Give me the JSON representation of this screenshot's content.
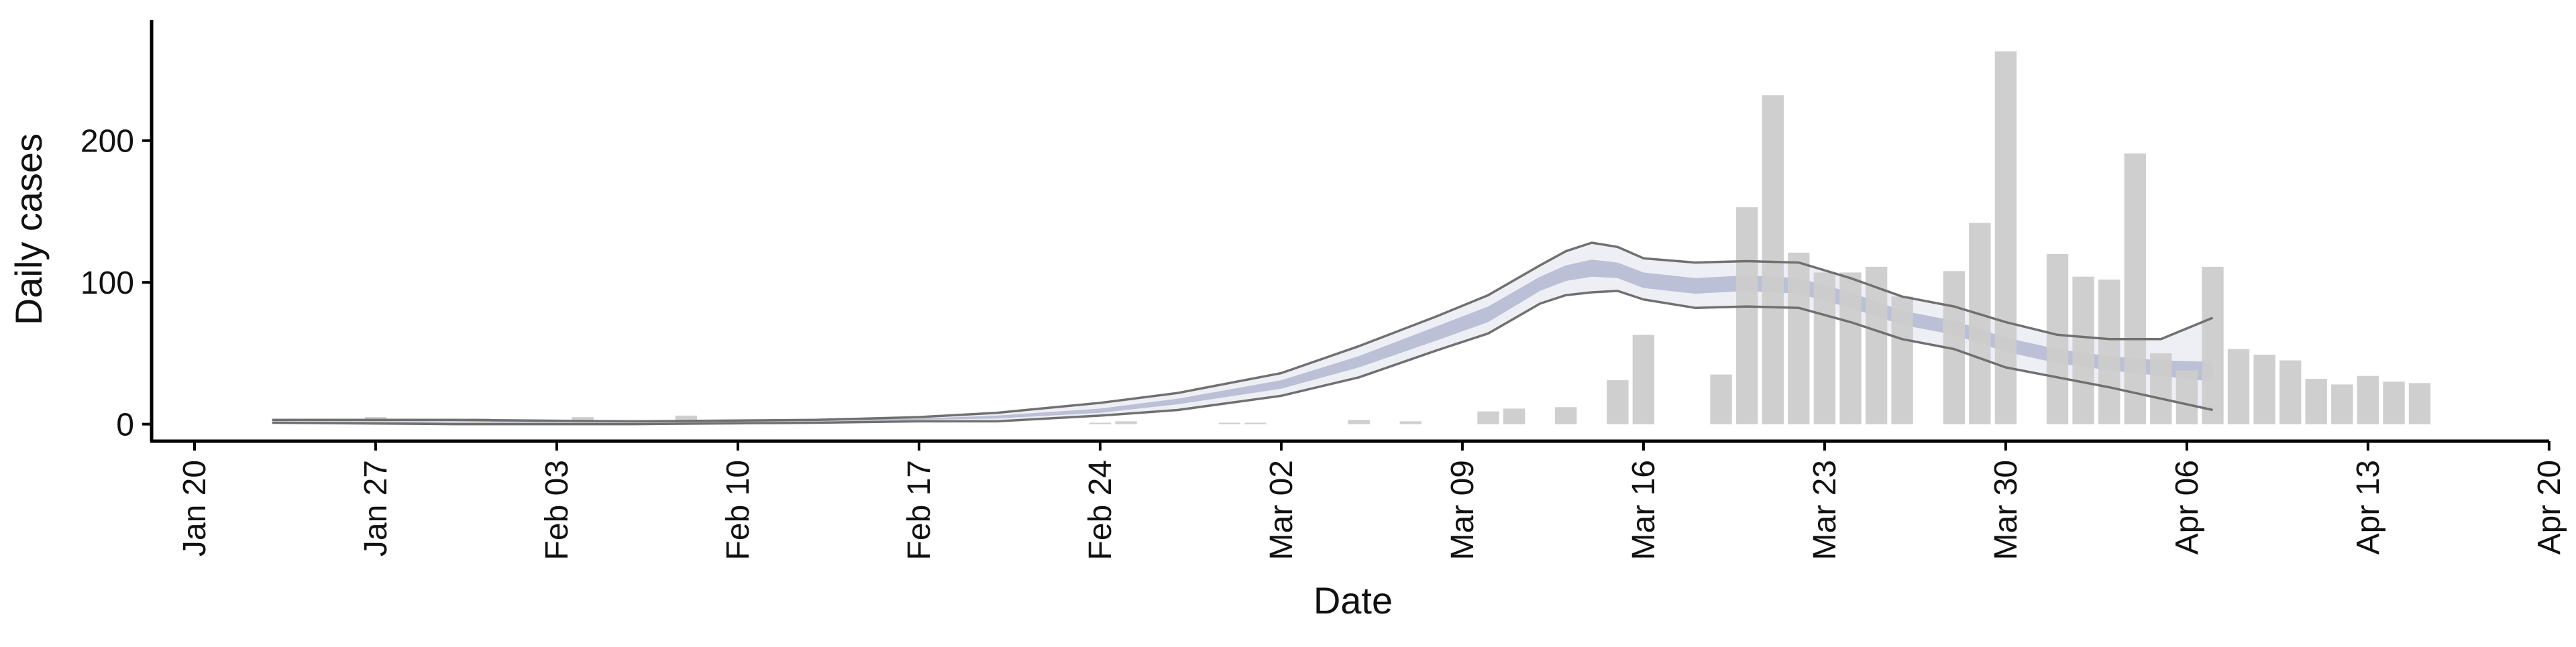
{
  "chart_data": {
    "type": "bar",
    "title": "",
    "xlabel": "Date",
    "ylabel": "Daily cases",
    "x_axis": {
      "start": "2020-01-20",
      "end": "2020-04-20",
      "ticks": [
        "Jan 20",
        "Jan 27",
        "Feb 03",
        "Feb 10",
        "Feb 17",
        "Feb 24",
        "Mar 02",
        "Mar 09",
        "Mar 16",
        "Mar 23",
        "Mar 30",
        "Apr 06",
        "Apr 13",
        "Apr 20"
      ]
    },
    "y_axis": {
      "ylim": [
        -12,
        285
      ],
      "ticks": [
        0,
        100,
        200
      ]
    },
    "grid": false,
    "legend": "none",
    "series": [
      {
        "kind": "bars",
        "color": "#cccccc",
        "points": [
          {
            "x": "2020-01-27",
            "y": 5
          },
          {
            "x": "2020-01-31",
            "y": 4
          },
          {
            "x": "2020-02-04",
            "y": 5
          },
          {
            "x": "2020-02-08",
            "y": 6
          },
          {
            "x": "2020-02-24",
            "y": 1
          },
          {
            "x": "2020-02-25",
            "y": 2
          },
          {
            "x": "2020-02-29",
            "y": 1
          },
          {
            "x": "2020-03-01",
            "y": 1
          },
          {
            "x": "2020-03-05",
            "y": 3
          },
          {
            "x": "2020-03-07",
            "y": 2
          },
          {
            "x": "2020-03-10",
            "y": 9
          },
          {
            "x": "2020-03-11",
            "y": 11
          },
          {
            "x": "2020-03-13",
            "y": 12
          },
          {
            "x": "2020-03-15",
            "y": 31
          },
          {
            "x": "2020-03-16",
            "y": 63
          },
          {
            "x": "2020-03-19",
            "y": 35
          },
          {
            "x": "2020-03-20",
            "y": 153
          },
          {
            "x": "2020-03-21",
            "y": 232
          },
          {
            "x": "2020-03-22",
            "y": 121
          },
          {
            "x": "2020-03-23",
            "y": 107
          },
          {
            "x": "2020-03-24",
            "y": 107
          },
          {
            "x": "2020-03-25",
            "y": 111
          },
          {
            "x": "2020-03-26",
            "y": 90
          },
          {
            "x": "2020-03-28",
            "y": 108
          },
          {
            "x": "2020-03-29",
            "y": 142
          },
          {
            "x": "2020-03-30",
            "y": 263
          },
          {
            "x": "2020-04-01",
            "y": 120
          },
          {
            "x": "2020-04-02",
            "y": 104
          },
          {
            "x": "2020-04-03",
            "y": 102
          },
          {
            "x": "2020-04-04",
            "y": 191
          },
          {
            "x": "2020-04-05",
            "y": 50
          },
          {
            "x": "2020-04-06",
            "y": 38
          },
          {
            "x": "2020-04-07",
            "y": 111
          },
          {
            "x": "2020-04-08",
            "y": 53
          },
          {
            "x": "2020-04-09",
            "y": 49
          },
          {
            "x": "2020-04-10",
            "y": 45
          },
          {
            "x": "2020-04-11",
            "y": 32
          },
          {
            "x": "2020-04-12",
            "y": 28
          },
          {
            "x": "2020-04-13",
            "y": 34
          },
          {
            "x": "2020-04-14",
            "y": 30
          },
          {
            "x": "2020-04-15",
            "y": 29
          }
        ]
      },
      {
        "kind": "outer-band",
        "color": "#c9cde0",
        "points": [
          {
            "x": "2020-01-23",
            "lower": 1,
            "upper": 3
          },
          {
            "x": "2020-01-30",
            "lower": 0,
            "upper": 3
          },
          {
            "x": "2020-02-06",
            "lower": 0,
            "upper": 2
          },
          {
            "x": "2020-02-13",
            "lower": 1,
            "upper": 3
          },
          {
            "x": "2020-02-17",
            "lower": 2,
            "upper": 5
          },
          {
            "x": "2020-02-20",
            "lower": 2,
            "upper": 8
          },
          {
            "x": "2020-02-24",
            "lower": 6,
            "upper": 15
          },
          {
            "x": "2020-02-27",
            "lower": 10,
            "upper": 22
          },
          {
            "x": "2020-03-02",
            "lower": 20,
            "upper": 36
          },
          {
            "x": "2020-03-05",
            "lower": 33,
            "upper": 55
          },
          {
            "x": "2020-03-08",
            "lower": 52,
            "upper": 76
          },
          {
            "x": "2020-03-10",
            "lower": 64,
            "upper": 91
          },
          {
            "x": "2020-03-12",
            "lower": 85,
            "upper": 112
          },
          {
            "x": "2020-03-13",
            "lower": 91,
            "upper": 122
          },
          {
            "x": "2020-03-14",
            "lower": 93,
            "upper": 128
          },
          {
            "x": "2020-03-15",
            "lower": 94,
            "upper": 125
          },
          {
            "x": "2020-03-16",
            "lower": 88,
            "upper": 117
          },
          {
            "x": "2020-03-18",
            "lower": 82,
            "upper": 114
          },
          {
            "x": "2020-03-20",
            "lower": 83,
            "upper": 115
          },
          {
            "x": "2020-03-22",
            "lower": 82,
            "upper": 114
          },
          {
            "x": "2020-03-24",
            "lower": 72,
            "upper": 103
          },
          {
            "x": "2020-03-26",
            "lower": 60,
            "upper": 90
          },
          {
            "x": "2020-03-28",
            "lower": 53,
            "upper": 83
          },
          {
            "x": "2020-03-30",
            "lower": 40,
            "upper": 72
          },
          {
            "x": "2020-04-01",
            "lower": 33,
            "upper": 63
          },
          {
            "x": "2020-04-03",
            "lower": 26,
            "upper": 60
          },
          {
            "x": "2020-04-05",
            "lower": 18,
            "upper": 60
          },
          {
            "x": "2020-04-07",
            "lower": 10,
            "upper": 75
          }
        ]
      },
      {
        "kind": "inner-band",
        "color": "#aab0cb",
        "points": [
          {
            "x": "2020-01-23",
            "lower": 1,
            "upper": 2
          },
          {
            "x": "2020-01-30",
            "lower": 1,
            "upper": 2
          },
          {
            "x": "2020-02-06",
            "lower": 1,
            "upper": 2
          },
          {
            "x": "2020-02-13",
            "lower": 2,
            "upper": 3
          },
          {
            "x": "2020-02-17",
            "lower": 3,
            "upper": 4
          },
          {
            "x": "2020-02-20",
            "lower": 4,
            "upper": 6
          },
          {
            "x": "2020-02-24",
            "lower": 8,
            "upper": 11
          },
          {
            "x": "2020-02-27",
            "lower": 14,
            "upper": 18
          },
          {
            "x": "2020-03-02",
            "lower": 25,
            "upper": 31
          },
          {
            "x": "2020-03-05",
            "lower": 40,
            "upper": 48
          },
          {
            "x": "2020-03-08",
            "lower": 59,
            "upper": 69
          },
          {
            "x": "2020-03-10",
            "lower": 72,
            "upper": 83
          },
          {
            "x": "2020-03-12",
            "lower": 94,
            "upper": 104
          },
          {
            "x": "2020-03-13",
            "lower": 101,
            "upper": 112
          },
          {
            "x": "2020-03-14",
            "lower": 104,
            "upper": 116
          },
          {
            "x": "2020-03-15",
            "lower": 103,
            "upper": 114
          },
          {
            "x": "2020-03-16",
            "lower": 96,
            "upper": 107
          },
          {
            "x": "2020-03-18",
            "lower": 92,
            "upper": 103
          },
          {
            "x": "2020-03-20",
            "lower": 94,
            "upper": 105
          },
          {
            "x": "2020-03-22",
            "lower": 92,
            "upper": 103
          },
          {
            "x": "2020-03-24",
            "lower": 82,
            "upper": 93
          },
          {
            "x": "2020-03-26",
            "lower": 70,
            "upper": 80
          },
          {
            "x": "2020-03-28",
            "lower": 63,
            "upper": 73
          },
          {
            "x": "2020-03-30",
            "lower": 51,
            "upper": 61
          },
          {
            "x": "2020-04-01",
            "lower": 43,
            "upper": 53
          },
          {
            "x": "2020-04-03",
            "lower": 38,
            "upper": 48
          },
          {
            "x": "2020-04-05",
            "lower": 34,
            "upper": 45
          },
          {
            "x": "2020-04-07",
            "lower": 30,
            "upper": 44
          }
        ]
      }
    ]
  }
}
